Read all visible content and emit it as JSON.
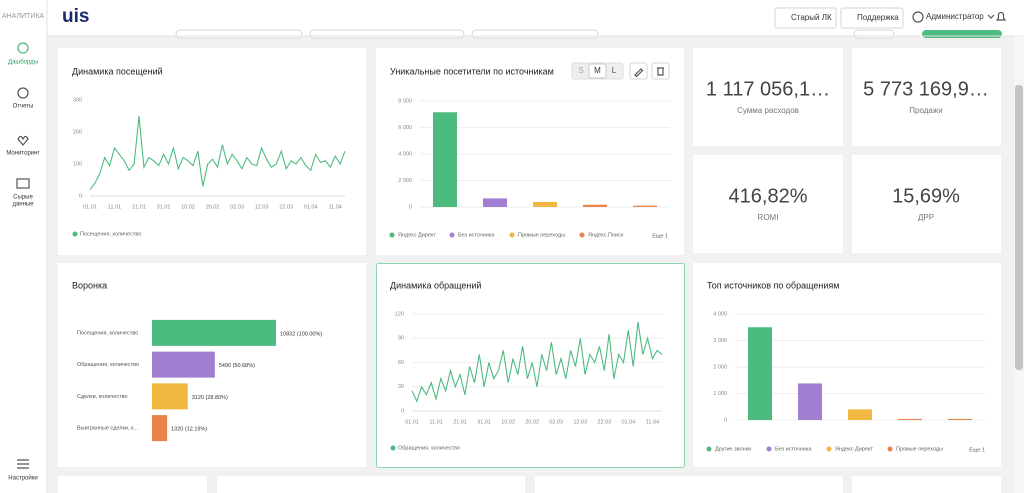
{
  "sidebar": {
    "brand": "АНАЛИТИКА",
    "nav": [
      {
        "lines": [
          "Дашборды"
        ]
      },
      {
        "lines": [
          "Отчеты"
        ]
      },
      {
        "lines": [
          "Мониторинг"
        ]
      },
      {
        "lines": [
          "Сырые",
          "данные"
        ]
      }
    ],
    "settings": "Настройки"
  },
  "header": {
    "logo": "uis",
    "buttons": [
      "Старый ЛК",
      "Поддержка"
    ],
    "user": "Администратор"
  },
  "size_buttons": [
    "S",
    "M",
    "L"
  ],
  "kpis": [
    {
      "value": "1 117 056,1…",
      "label": "Сумма расходов"
    },
    {
      "value": "5 773 169,9…",
      "label": "Продажи"
    },
    {
      "value": "416,82%",
      "label": "ROMI"
    },
    {
      "value": "15,69%",
      "label": "ДРР"
    }
  ],
  "chart_data": [
    {
      "type": "line",
      "title": "Динамика посещений",
      "categories": [
        "01.01",
        null,
        null,
        null,
        null,
        "11.01",
        null,
        null,
        null,
        null,
        "21.01",
        null,
        null,
        null,
        null,
        "31.01",
        null,
        null,
        null,
        null,
        "10.02",
        null,
        null,
        null,
        null,
        "20.02",
        null,
        null,
        null,
        null,
        "02.03",
        null,
        null,
        null,
        null,
        "12.03",
        null,
        null,
        null,
        null,
        "22.03",
        null,
        null,
        null,
        null,
        "01.04",
        null,
        null,
        null,
        null,
        "11.04",
        null,
        null
      ],
      "series": [
        {
          "name": "Посещения, количество",
          "color": "#4cbb7f",
          "values": [
            20,
            40,
            70,
            120,
            95,
            150,
            130,
            110,
            80,
            100,
            250,
            90,
            120,
            110,
            95,
            130,
            100,
            150,
            85,
            120,
            110,
            95,
            140,
            30,
            100,
            115,
            90,
            160,
            100,
            130,
            110,
            85,
            120,
            100,
            95,
            150,
            115,
            90,
            100,
            140,
            85,
            110,
            100,
            120,
            95,
            80,
            130,
            105,
            110,
            90,
            125,
            100,
            140
          ]
        }
      ],
      "ylim": [
        0,
        300
      ],
      "yticks": [
        0,
        100,
        200,
        300
      ],
      "grid": false
    },
    {
      "type": "bar",
      "title": "Уникальные посетители по источникам",
      "categories": [
        "Яндекс Директ",
        "Без источника",
        "Прямые переходы",
        "Яндекс.Поиск",
        null
      ],
      "values": [
        7150,
        650,
        380,
        170,
        100
      ],
      "colors": [
        "#4cbb7f",
        "#a07fd0",
        "#f0b840",
        "#e8834a",
        "#e8834a"
      ],
      "legend_more": "Еще 1",
      "ylim": [
        0,
        8000
      ],
      "yticks": [
        0,
        {
          "value": 2000,
          "label": "2 000"
        },
        {
          "value": 4000,
          "label": "4 000"
        },
        {
          "value": 6000,
          "label": "6 000"
        },
        {
          "value": 8000,
          "label": "8 000"
        }
      ],
      "grid": true
    },
    {
      "type": "funnel",
      "title": "Воронка",
      "categories": [
        "Посещения, количество",
        "Обращения, количество",
        "Сделки, количество",
        "Выигранные сделки, к..."
      ],
      "values": [
        10832,
        5490,
        3120,
        1320
      ],
      "value_labels": [
        "10832 (100.00%)",
        "5490 (50.68%)",
        "3120 (28.80%)",
        "1320 (12.19%)"
      ],
      "colors": [
        "#4cbb7f",
        "#a07fd0",
        "#f0b840",
        "#e8834a"
      ]
    },
    {
      "type": "line",
      "title": "Динамика обращений",
      "categories": [
        "01.01",
        null,
        null,
        null,
        null,
        "11.01",
        null,
        null,
        null,
        null,
        "21.01",
        null,
        null,
        null,
        null,
        "31.01",
        null,
        null,
        null,
        null,
        "10.02",
        null,
        null,
        null,
        null,
        "20.02",
        null,
        null,
        null,
        null,
        "02.03",
        null,
        null,
        null,
        null,
        "12.03",
        null,
        null,
        null,
        null,
        "22.03",
        null,
        null,
        null,
        null,
        "01.04",
        null,
        null,
        null,
        null,
        "11.04",
        null,
        null
      ],
      "series": [
        {
          "name": "Обращения, количество",
          "color": "#4cbb7f",
          "values": [
            25,
            12,
            30,
            20,
            35,
            15,
            40,
            25,
            50,
            30,
            45,
            20,
            55,
            35,
            70,
            30,
            60,
            40,
            50,
            75,
            35,
            65,
            45,
            80,
            40,
            60,
            30,
            70,
            50,
            85,
            45,
            65,
            40,
            75,
            55,
            90,
            45,
            70,
            60,
            80,
            50,
            95,
            40,
            70,
            60,
            100,
            55,
            110,
            70,
            90,
            65,
            75,
            70
          ]
        }
      ],
      "ylim": [
        0,
        120
      ],
      "yticks": [
        0,
        30,
        60,
        90,
        120
      ],
      "grid": true
    },
    {
      "type": "bar",
      "title": "Топ источников по обращениям",
      "categories": [
        "Другие звонки",
        "Без источника",
        "Яндекс Директ",
        "Прямые переходы",
        null
      ],
      "values": [
        3500,
        1380,
        400,
        40,
        40
      ],
      "colors": [
        "#4cbb7f",
        "#a07fd0",
        "#f0b840",
        "#e8834a",
        "#e8834a"
      ],
      "legend_more": "Еще 1",
      "ylim": [
        0,
        4000
      ],
      "yticks": [
        0,
        {
          "value": 1000,
          "label": "1 000"
        },
        {
          "value": 2000,
          "label": "2 000"
        },
        {
          "value": 3000,
          "label": "3 000"
        },
        {
          "value": 4000,
          "label": "4 000"
        }
      ],
      "grid": true
    }
  ]
}
